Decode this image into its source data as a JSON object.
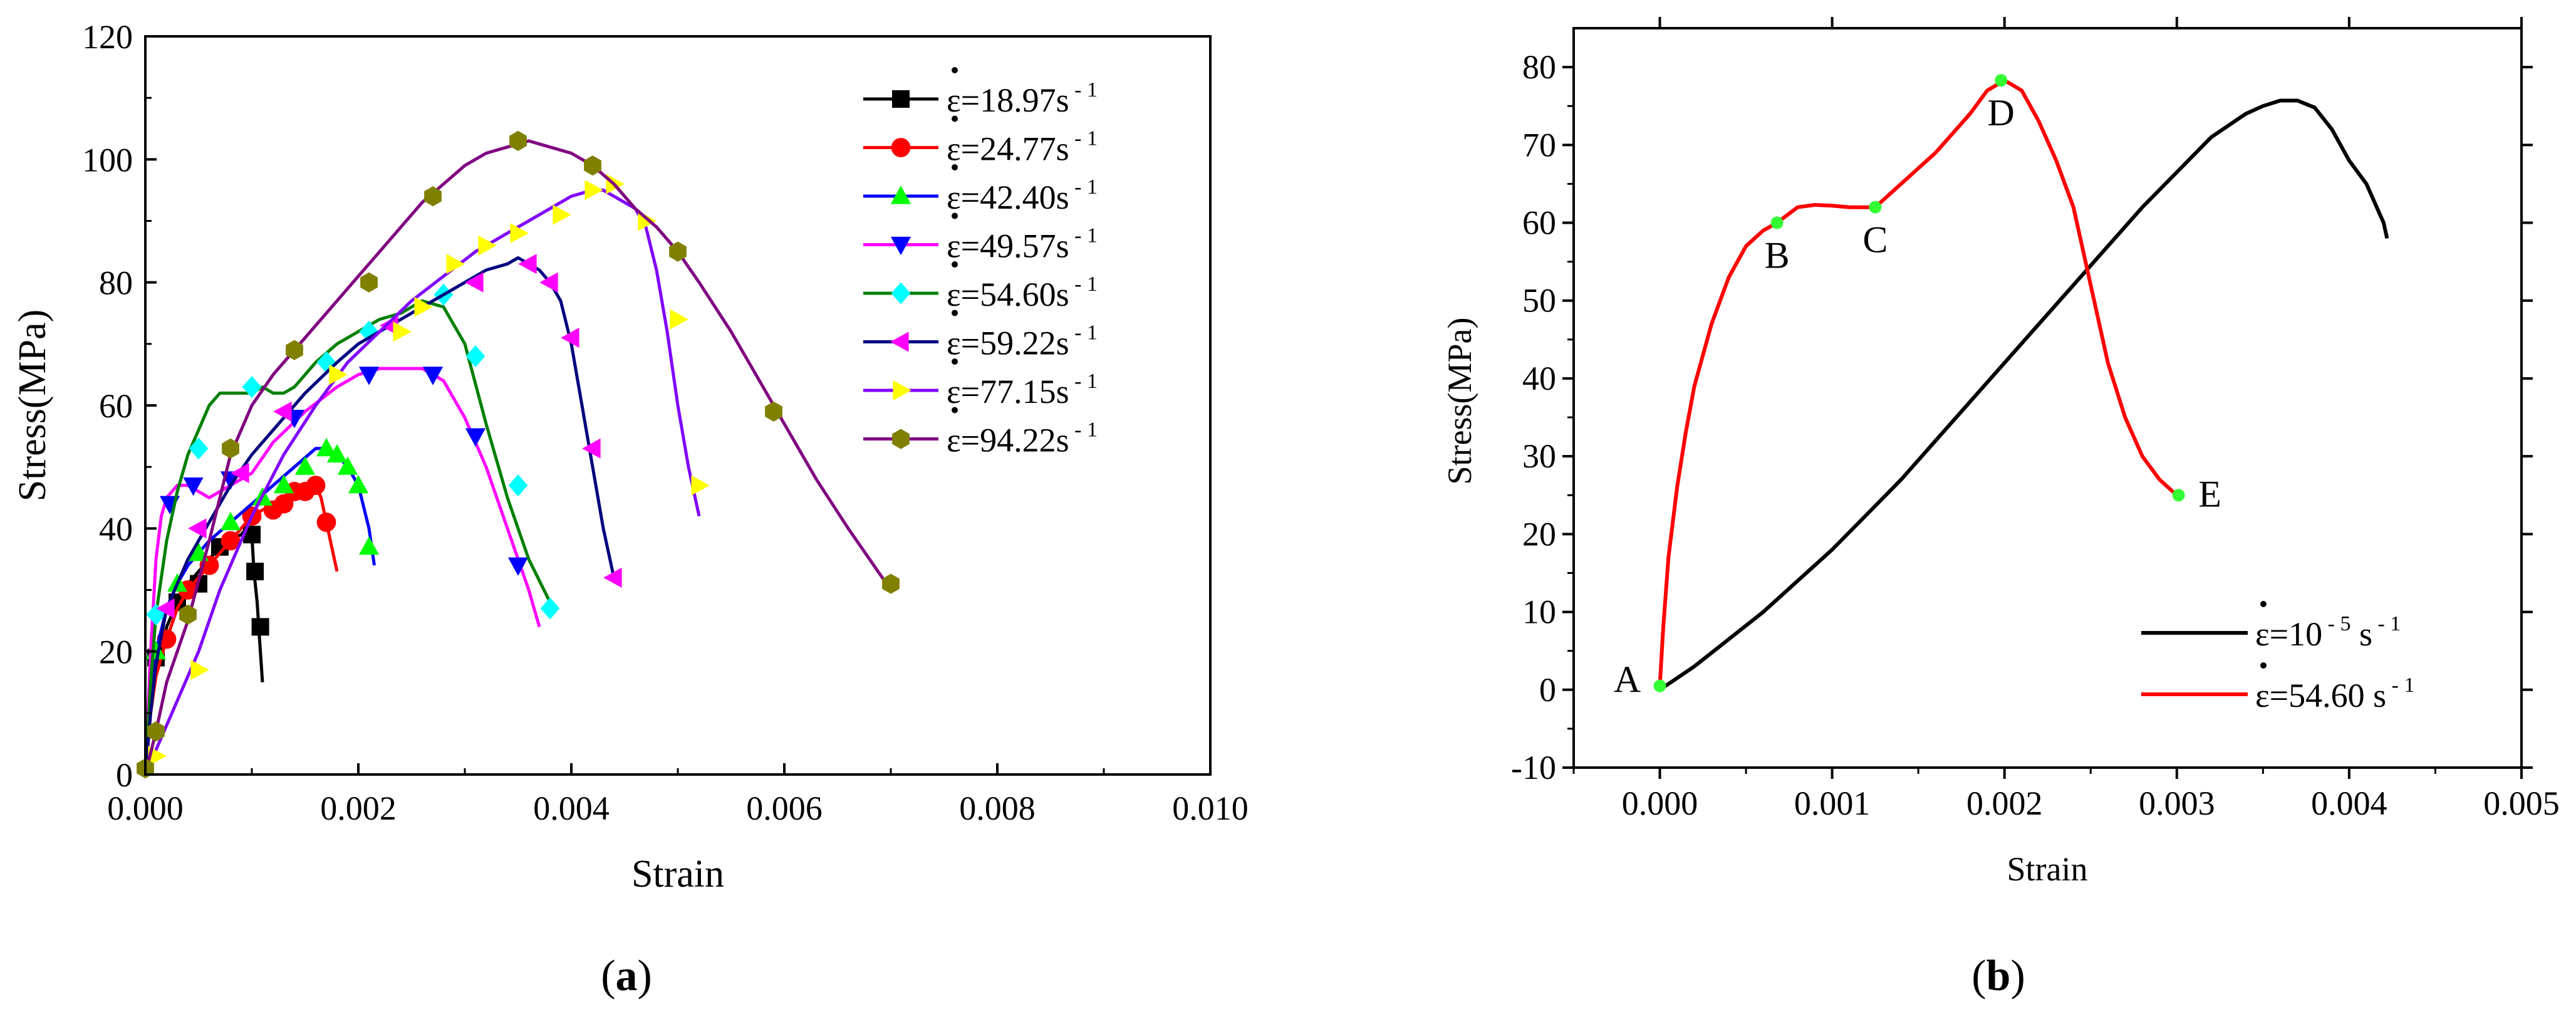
{
  "chart_data": [
    {
      "panel": "(a)",
      "panel_letter": "a",
      "type": "line",
      "xlabel": "Strain",
      "ylabel": "Stress(MPa)",
      "xlim": [
        0,
        0.01
      ],
      "ylim": [
        0,
        120
      ],
      "xticks": [
        0,
        0.002,
        0.004,
        0.006,
        0.008,
        0.01
      ],
      "xtick_labels": [
        "0.000",
        "0.002",
        "0.004",
        "0.006",
        "0.008",
        "0.010"
      ],
      "yticks": [
        0,
        20,
        40,
        60,
        80,
        100,
        120
      ],
      "ytick_labels": [
        "0",
        "20",
        "40",
        "60",
        "80",
        "100",
        "120"
      ],
      "legend_position": "top-right",
      "series": [
        {
          "name": "ε̇=18.97s⁻¹",
          "rate": "18.97",
          "color": "#000000",
          "marker": "square",
          "x": [
            0,
            3e-05,
            8e-05,
            0.00015,
            0.0002,
            0.0003,
            0.0004,
            0.0005,
            0.0006,
            0.0007,
            0.0008,
            0.0009,
            0.00095,
            0.001,
            0.00102,
            0.00105,
            0.00108,
            0.0011
          ],
          "y": [
            0,
            8,
            16,
            20,
            24,
            28,
            31,
            33,
            35,
            37,
            38,
            39,
            40,
            39,
            33,
            28,
            20,
            15
          ],
          "markers_x": [
            0.0001,
            0.0003,
            0.0005,
            0.0007,
            0.001,
            0.00103,
            0.00108
          ],
          "markers_y": [
            19,
            28,
            31,
            37,
            39,
            33,
            24
          ]
        },
        {
          "name": "ε̇=24.77s⁻¹",
          "rate": "24.77",
          "color": "#ff0000",
          "marker": "circle",
          "x": [
            0,
            5e-05,
            0.0001,
            0.0002,
            0.0003,
            0.0004,
            0.0005,
            0.0006,
            0.0008,
            0.001,
            0.0012,
            0.0014,
            0.0015,
            0.0016,
            0.00165,
            0.0017,
            0.00175,
            0.0018
          ],
          "y": [
            0,
            10,
            16,
            22,
            27,
            30,
            32,
            34,
            38,
            42,
            44,
            46,
            47,
            47,
            45,
            41,
            37,
            33
          ],
          "markers_x": [
            0.0002,
            0.0004,
            0.0006,
            0.0008,
            0.001,
            0.0012,
            0.0013,
            0.0014,
            0.0015,
            0.0016,
            0.0017
          ],
          "markers_y": [
            22,
            30,
            34,
            38,
            42,
            43,
            44,
            46,
            46,
            47,
            41
          ]
        },
        {
          "name": "ε̇=42.40s⁻¹",
          "rate": "42.40",
          "color": "#0000ff",
          "marker": "triangle-up",
          "marker_color": "#00ff00",
          "x": [
            0,
            5e-05,
            0.0001,
            0.0002,
            0.0003,
            0.0004,
            0.0006,
            0.0008,
            0.001,
            0.0012,
            0.0014,
            0.0016,
            0.0017,
            0.0018,
            0.0019,
            0.002,
            0.0021,
            0.00215
          ],
          "y": [
            0,
            12,
            20,
            27,
            31,
            34,
            38,
            41,
            44,
            47,
            50,
            53,
            53,
            52,
            50,
            47,
            40,
            34
          ],
          "markers_x": [
            0.0001,
            0.0003,
            0.0005,
            0.0008,
            0.0011,
            0.0013,
            0.0015,
            0.0017,
            0.0018,
            0.0019,
            0.002,
            0.0021
          ],
          "markers_y": [
            20,
            31,
            36,
            41,
            45,
            47,
            50,
            53,
            52,
            50,
            47,
            37
          ]
        },
        {
          "name": "ε̇=49.57s⁻¹",
          "rate": "49.57",
          "color": "#ff00ff",
          "marker": "triangle-down",
          "marker_color": "#0000ff",
          "x": [
            0,
            5e-05,
            0.0001,
            0.00015,
            0.0002,
            0.0003,
            0.0004,
            0.0005,
            0.0006,
            0.0008,
            0.001,
            0.0012,
            0.0015,
            0.0018,
            0.002,
            0.0022,
            0.0024,
            0.0026,
            0.0028,
            0.003,
            0.0032,
            0.0034,
            0.0036,
            0.0037
          ],
          "y": [
            0,
            20,
            35,
            42,
            45,
            47,
            47,
            46,
            45,
            47,
            49,
            54,
            59,
            63,
            65,
            66,
            66,
            66,
            64,
            58,
            50,
            40,
            30,
            24
          ],
          "markers_x": [
            0.00023,
            0.00045,
            0.0008,
            0.0014,
            0.0021,
            0.0027,
            0.0031,
            0.0035
          ],
          "markers_y": [
            44,
            47,
            48,
            58,
            65,
            65,
            55,
            34
          ]
        },
        {
          "name": "ε̇=54.60s⁻¹",
          "rate": "54.60",
          "color": "#008000",
          "marker": "diamond",
          "marker_color": "#00ffff",
          "x": [
            0,
            5e-05,
            0.0001,
            0.0002,
            0.0003,
            0.0004,
            0.0005,
            0.0006,
            0.0007,
            0.0008,
            0.0009,
            0.001,
            0.0011,
            0.0012,
            0.0013,
            0.0014,
            0.0016,
            0.0018,
            0.002,
            0.0022,
            0.0024,
            0.0026,
            0.0028,
            0.003,
            0.0032,
            0.0034,
            0.0036,
            0.0038,
            0.00385
          ],
          "y": [
            0,
            15,
            26,
            38,
            46,
            52,
            56,
            60,
            62,
            62,
            62,
            62,
            63,
            62,
            62,
            63,
            67,
            70,
            72,
            74,
            75,
            77,
            76,
            70,
            57,
            45,
            35,
            28,
            27
          ],
          "markers_x": [
            0.0001,
            0.0005,
            0.001,
            0.0017,
            0.0021,
            0.0028,
            0.0031,
            0.0035,
            0.0038
          ],
          "markers_y": [
            26,
            53,
            63,
            67,
            72,
            78,
            68,
            47,
            27
          ]
        },
        {
          "name": "ε̇=59.22s⁻¹",
          "rate": "59.22",
          "color": "#000080",
          "marker": "triangle-left",
          "marker_color": "#ff00ff",
          "x": [
            0,
            5e-05,
            0.0001,
            0.0002,
            0.0004,
            0.0006,
            0.0008,
            0.001,
            0.0012,
            0.0015,
            0.0018,
            0.002,
            0.0022,
            0.0024,
            0.0026,
            0.0028,
            0.003,
            0.0032,
            0.0034,
            0.0035,
            0.0036,
            0.0037,
            0.0038,
            0.0039,
            0.004,
            0.0041,
            0.0042,
            0.0043,
            0.0044
          ],
          "y": [
            0,
            10,
            18,
            27,
            35,
            41,
            47,
            52,
            56,
            62,
            67,
            70,
            72,
            74,
            76,
            78,
            80,
            82,
            83,
            84,
            83,
            82,
            80,
            77,
            70,
            60,
            50,
            40,
            32
          ],
          "markers_x": [
            0.0002,
            0.0005,
            0.0009,
            0.0013,
            0.0023,
            0.0031,
            0.0036,
            0.0038,
            0.004,
            0.0042,
            0.0044
          ],
          "markers_y": [
            27,
            40,
            49,
            59,
            73,
            80,
            83,
            80,
            71,
            53,
            32
          ]
        },
        {
          "name": "ε̇=77.15s⁻¹",
          "rate": "77.15",
          "color": "#8000ff",
          "marker": "triangle-right",
          "marker_color": "#ffff00",
          "x": [
            0,
            0.0001,
            0.0002,
            0.0003,
            0.0005,
            0.0007,
            0.001,
            0.0013,
            0.0016,
            0.0019,
            0.0022,
            0.0025,
            0.0028,
            0.0031,
            0.0034,
            0.0037,
            0.004,
            0.0042,
            0.0043,
            0.0044,
            0.0045,
            0.0046,
            0.0047,
            0.0048,
            0.0049,
            0.005,
            0.0051,
            0.0052
          ],
          "y": [
            0,
            4,
            8,
            12,
            20,
            30,
            42,
            52,
            60,
            67,
            72,
            77,
            81,
            85,
            88,
            91,
            94,
            95,
            95,
            94,
            93,
            92,
            89,
            82,
            72,
            60,
            50,
            42
          ],
          "markers_x": [
            0.0001,
            0.0005,
            0.0018,
            0.0024,
            0.0026,
            0.0029,
            0.0032,
            0.0035,
            0.0039,
            0.0042,
            0.0044,
            0.0047,
            0.005,
            0.0052
          ],
          "markers_y": [
            3,
            17,
            65,
            72,
            76,
            83,
            86,
            88,
            91,
            95,
            96,
            90,
            74,
            47
          ]
        },
        {
          "name": "ε̇=94.22s⁻¹",
          "rate": "94.22",
          "color": "#800080",
          "marker": "hexagon",
          "marker_color": "#808000",
          "x": [
            0,
            0.0001,
            0.0002,
            0.0004,
            0.0006,
            0.0008,
            0.001,
            0.0012,
            0.0014,
            0.0016,
            0.0018,
            0.002,
            0.0022,
            0.0024,
            0.0026,
            0.0028,
            0.003,
            0.0032,
            0.0034,
            0.0036,
            0.0038,
            0.004,
            0.0042,
            0.0044,
            0.0046,
            0.0048,
            0.005,
            0.0052,
            0.0055,
            0.0058,
            0.006,
            0.0063,
            0.0066,
            0.007
          ],
          "y": [
            0,
            7,
            15,
            25,
            38,
            52,
            60,
            65,
            69,
            73,
            77,
            81,
            85,
            89,
            93,
            96,
            99,
            101,
            102,
            103,
            102,
            101,
            99,
            96,
            92,
            89,
            85,
            80,
            72,
            63,
            57,
            48,
            40,
            30
          ],
          "markers_x": [
            0,
            0.0001,
            0.0004,
            0.0008,
            0.0014,
            0.0021,
            0.0027,
            0.0035,
            0.0042,
            0.005,
            0.0059,
            0.007
          ],
          "markers_y": [
            1,
            7,
            26,
            53,
            69,
            80,
            94,
            103,
            99,
            85,
            59,
            31
          ]
        }
      ]
    },
    {
      "panel": "(b)",
      "panel_letter": "b",
      "type": "line",
      "xlabel": "Strain",
      "ylabel": "Stress(MPa)",
      "xlim": [
        -0.0005,
        0.005
      ],
      "ylim": [
        -10,
        85
      ],
      "xticks": [
        0,
        0.001,
        0.002,
        0.003,
        0.004,
        0.005
      ],
      "xtick_labels": [
        "0.000",
        "0.001",
        "0.002",
        "0.003",
        "0.004",
        "0.005"
      ],
      "yticks": [
        -10,
        0,
        10,
        20,
        30,
        40,
        50,
        60,
        70,
        80
      ],
      "ytick_labels": [
        "-10",
        "0",
        "10",
        "20",
        "30",
        "40",
        "50",
        "60",
        "70",
        "80"
      ],
      "legend_position": "bottom-right",
      "series": [
        {
          "name": "ε̇=10⁻⁵ s⁻¹",
          "rate_text": "10",
          "rate_exp": "- 5",
          "color": "#000000",
          "x": [
            0,
            0.0002,
            0.0004,
            0.0006,
            0.0008,
            0.001,
            0.0012,
            0.0014,
            0.0016,
            0.0018,
            0.002,
            0.0022,
            0.0024,
            0.0026,
            0.0028,
            0.003,
            0.0032,
            0.0034,
            0.0035,
            0.0036,
            0.0037,
            0.0038,
            0.0039,
            0.004,
            0.0041,
            0.0042,
            0.00422
          ],
          "y": [
            0,
            3,
            6.5,
            10,
            14,
            18,
            22.5,
            27,
            32,
            37,
            42,
            47,
            52,
            57,
            62,
            66.5,
            71,
            74,
            75,
            75.7,
            75.7,
            74.8,
            72,
            68,
            65,
            60,
            58
          ]
        },
        {
          "name": "ε̇=54.60 s⁻¹",
          "rate_text": "54.60",
          "color": "#ff0000",
          "x": [
            0,
            2e-05,
            5e-05,
            0.0001,
            0.00015,
            0.0002,
            0.0003,
            0.0004,
            0.0005,
            0.0006,
            0.00068,
            0.0008,
            0.0009,
            0.001,
            0.0011,
            0.00125,
            0.0014,
            0.0016,
            0.0018,
            0.0019,
            0.002,
            0.0021,
            0.0022,
            0.0023,
            0.0024,
            0.0025,
            0.0026,
            0.0027,
            0.0028,
            0.0029,
            0.003
          ],
          "y": [
            0.5,
            8,
            17,
            26,
            33,
            39,
            47,
            53,
            57,
            59,
            60,
            62,
            62.3,
            62.2,
            62,
            62,
            65,
            69,
            74,
            77,
            78.3,
            77,
            73,
            68,
            62,
            52,
            42,
            35,
            30,
            27,
            25
          ]
        }
      ],
      "points": [
        {
          "label": "A",
          "x": 0,
          "y": 0.5
        },
        {
          "label": "B",
          "x": 0.00068,
          "y": 60
        },
        {
          "label": "C",
          "x": 0.00125,
          "y": 62
        },
        {
          "label": "D",
          "x": 0.00198,
          "y": 78.3
        },
        {
          "label": "E",
          "x": 0.00301,
          "y": 25
        }
      ],
      "points_color": "#33ff33"
    }
  ]
}
